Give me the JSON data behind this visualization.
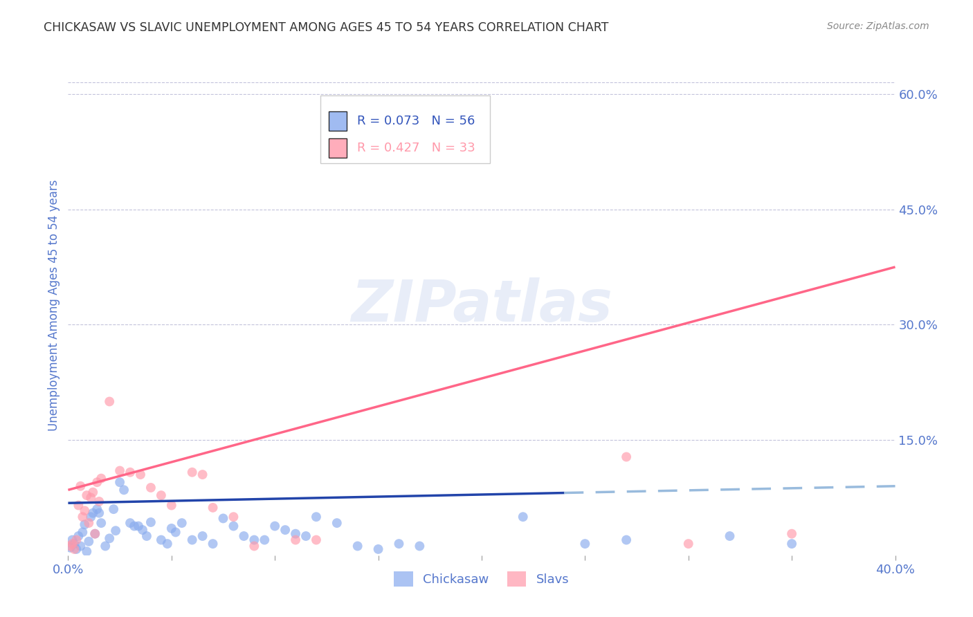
{
  "title": "CHICKASAW VS SLAVIC UNEMPLOYMENT AMONG AGES 45 TO 54 YEARS CORRELATION CHART",
  "source": "Source: ZipAtlas.com",
  "ylabel": "Unemployment Among Ages 45 to 54 years",
  "xlim": [
    0.0,
    0.4
  ],
  "ylim": [
    0.0,
    0.65
  ],
  "grid_color": "#aaaacc",
  "background_color": "#ffffff",
  "title_color": "#444444",
  "tick_label_color": "#5577cc",
  "chickasaw_color": "#88aaee",
  "slavic_color": "#ff99aa",
  "chickasaw_R": 0.073,
  "chickasaw_N": 56,
  "slavic_R": 0.427,
  "slavic_N": 33,
  "chickasaw_points": [
    [
      0.001,
      0.01
    ],
    [
      0.002,
      0.02
    ],
    [
      0.003,
      0.015
    ],
    [
      0.004,
      0.008
    ],
    [
      0.005,
      0.025
    ],
    [
      0.006,
      0.012
    ],
    [
      0.007,
      0.03
    ],
    [
      0.008,
      0.04
    ],
    [
      0.009,
      0.005
    ],
    [
      0.01,
      0.018
    ],
    [
      0.011,
      0.05
    ],
    [
      0.012,
      0.055
    ],
    [
      0.013,
      0.028
    ],
    [
      0.014,
      0.06
    ],
    [
      0.015,
      0.055
    ],
    [
      0.016,
      0.042
    ],
    [
      0.018,
      0.012
    ],
    [
      0.02,
      0.022
    ],
    [
      0.022,
      0.06
    ],
    [
      0.023,
      0.032
    ],
    [
      0.025,
      0.095
    ],
    [
      0.027,
      0.085
    ],
    [
      0.03,
      0.042
    ],
    [
      0.032,
      0.038
    ],
    [
      0.034,
      0.038
    ],
    [
      0.036,
      0.033
    ],
    [
      0.038,
      0.025
    ],
    [
      0.04,
      0.043
    ],
    [
      0.045,
      0.02
    ],
    [
      0.048,
      0.015
    ],
    [
      0.05,
      0.035
    ],
    [
      0.052,
      0.03
    ],
    [
      0.055,
      0.042
    ],
    [
      0.06,
      0.02
    ],
    [
      0.065,
      0.025
    ],
    [
      0.07,
      0.015
    ],
    [
      0.075,
      0.048
    ],
    [
      0.08,
      0.038
    ],
    [
      0.085,
      0.025
    ],
    [
      0.09,
      0.02
    ],
    [
      0.095,
      0.02
    ],
    [
      0.1,
      0.038
    ],
    [
      0.105,
      0.033
    ],
    [
      0.11,
      0.028
    ],
    [
      0.115,
      0.025
    ],
    [
      0.12,
      0.05
    ],
    [
      0.13,
      0.042
    ],
    [
      0.14,
      0.012
    ],
    [
      0.15,
      0.008
    ],
    [
      0.16,
      0.015
    ],
    [
      0.17,
      0.012
    ],
    [
      0.22,
      0.05
    ],
    [
      0.25,
      0.015
    ],
    [
      0.27,
      0.02
    ],
    [
      0.32,
      0.025
    ],
    [
      0.35,
      0.015
    ]
  ],
  "slavic_points": [
    [
      0.001,
      0.012
    ],
    [
      0.002,
      0.015
    ],
    [
      0.003,
      0.008
    ],
    [
      0.004,
      0.02
    ],
    [
      0.005,
      0.065
    ],
    [
      0.006,
      0.09
    ],
    [
      0.007,
      0.05
    ],
    [
      0.008,
      0.058
    ],
    [
      0.009,
      0.078
    ],
    [
      0.01,
      0.042
    ],
    [
      0.011,
      0.075
    ],
    [
      0.012,
      0.082
    ],
    [
      0.013,
      0.028
    ],
    [
      0.014,
      0.095
    ],
    [
      0.015,
      0.07
    ],
    [
      0.016,
      0.1
    ],
    [
      0.02,
      0.2
    ],
    [
      0.025,
      0.11
    ],
    [
      0.03,
      0.108
    ],
    [
      0.035,
      0.105
    ],
    [
      0.04,
      0.088
    ],
    [
      0.045,
      0.078
    ],
    [
      0.05,
      0.065
    ],
    [
      0.06,
      0.108
    ],
    [
      0.065,
      0.105
    ],
    [
      0.07,
      0.062
    ],
    [
      0.08,
      0.05
    ],
    [
      0.09,
      0.012
    ],
    [
      0.11,
      0.02
    ],
    [
      0.12,
      0.02
    ],
    [
      0.27,
      0.128
    ],
    [
      0.3,
      0.015
    ],
    [
      0.35,
      0.028
    ]
  ],
  "chickasaw_trend_x0": 0.0,
  "chickasaw_trend_y0": 0.068,
  "chickasaw_trend_x1": 0.4,
  "chickasaw_trend_y1": 0.09,
  "chickasaw_trend_solid_end": 0.24,
  "slavic_trend_x0": 0.0,
  "slavic_trend_y0": 0.085,
  "slavic_trend_x1": 0.4,
  "slavic_trend_y1": 0.375,
  "watermark_text": "ZIPatlas",
  "legend_R_color": "#3355bb",
  "legend_text_color": "#222222"
}
